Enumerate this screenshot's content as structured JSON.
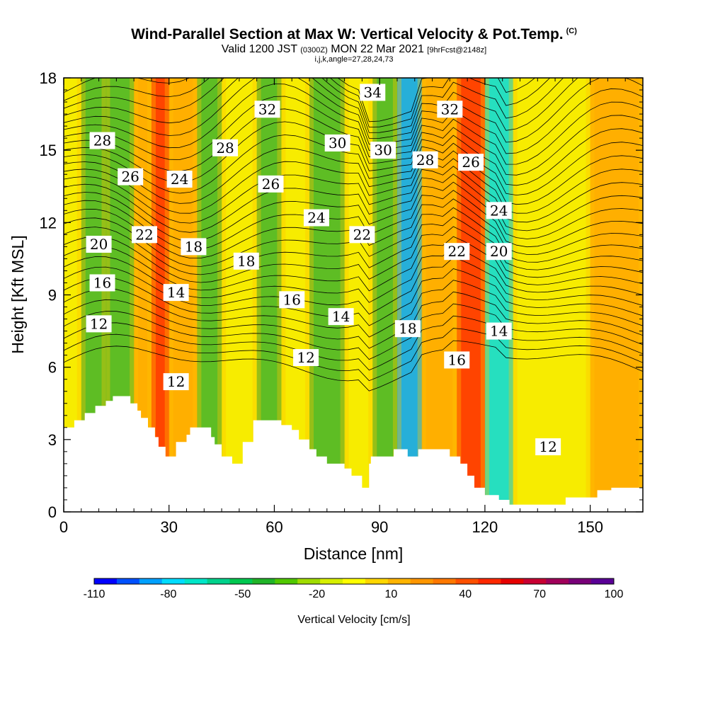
{
  "header": {
    "title": "Wind-Parallel Section at Max W: Vertical Velocity & Pot.Temp.",
    "copyright": "(C)",
    "line2_a": "Valid 1200 JST",
    "line2_b": "(0300Z)",
    "line2_c": "MON 22 Mar 2021",
    "line2_d": "[9hrFcst@2148z]",
    "line3": "i,j,k,angle=27,28,24,73"
  },
  "chart_data": {
    "type": "heatmap",
    "title": "Wind-Parallel Section at Max W: Vertical Velocity & Pot.Temp.",
    "xlabel": "Distance [nm]",
    "ylabel": "Height [Kft MSL]",
    "xlim": [
      0,
      165
    ],
    "ylim": [
      0,
      18
    ],
    "x_ticks": [
      "0",
      "30",
      "60",
      "90",
      "120",
      "150"
    ],
    "x_tick_values": [
      0,
      30,
      60,
      90,
      120,
      150
    ],
    "y_ticks": [
      "0",
      "3",
      "6",
      "9",
      "12",
      "15",
      "18"
    ],
    "y_tick_values": [
      0,
      3,
      6,
      9,
      12,
      15,
      18
    ],
    "colorbar": {
      "title": "Vertical Velocity [cm/s]",
      "labels": [
        "-110",
        "-80",
        "-50",
        "-20",
        "10",
        "40",
        "70",
        "100"
      ],
      "label_values": [
        -110,
        -80,
        -50,
        -20,
        10,
        40,
        70,
        100
      ],
      "colors": [
        "#0000ff",
        "#0050ff",
        "#00a0ff",
        "#00dcff",
        "#00e6c8",
        "#00d28c",
        "#00c850",
        "#20b428",
        "#50c800",
        "#a0dc00",
        "#d7ef00",
        "#ffff00",
        "#ffd700",
        "#ffb400",
        "#ff9600",
        "#ff7800",
        "#ff5000",
        "#ff2800",
        "#e60000",
        "#c80032",
        "#a0005a",
        "#780078",
        "#5a0096"
      ]
    },
    "w_field_columns": [
      {
        "x": 0,
        "band": "yellow"
      },
      {
        "x": 5,
        "band": "green"
      },
      {
        "x": 12,
        "band": "green"
      },
      {
        "x": 20,
        "band": "orange"
      },
      {
        "x": 25,
        "band": "red"
      },
      {
        "x": 30,
        "band": "orange"
      },
      {
        "x": 38,
        "band": "green"
      },
      {
        "x": 45,
        "band": "yellow"
      },
      {
        "x": 55,
        "band": "green"
      },
      {
        "x": 62,
        "band": "yellow"
      },
      {
        "x": 70,
        "band": "green"
      },
      {
        "x": 80,
        "band": "yellow"
      },
      {
        "x": 88,
        "band": "green"
      },
      {
        "x": 95,
        "band": "blue"
      },
      {
        "x": 102,
        "band": "orange"
      },
      {
        "x": 112,
        "band": "red"
      },
      {
        "x": 120,
        "band": "cyan"
      },
      {
        "x": 128,
        "band": "yellow"
      },
      {
        "x": 150,
        "band": "orange"
      },
      {
        "x": 165,
        "band": "yellow"
      }
    ],
    "theta_labels": [
      {
        "text": "34",
        "x": 88,
        "y": 17.4
      },
      {
        "text": "32",
        "x": 58,
        "y": 16.7
      },
      {
        "text": "32",
        "x": 110,
        "y": 16.7
      },
      {
        "text": "28",
        "x": 11,
        "y": 15.4
      },
      {
        "text": "30",
        "x": 78,
        "y": 15.3
      },
      {
        "text": "30",
        "x": 91,
        "y": 15.0
      },
      {
        "text": "28",
        "x": 46,
        "y": 15.1
      },
      {
        "text": "28",
        "x": 103,
        "y": 14.6
      },
      {
        "text": "26",
        "x": 116,
        "y": 14.5
      },
      {
        "text": "26",
        "x": 19,
        "y": 13.9
      },
      {
        "text": "24",
        "x": 33,
        "y": 13.8
      },
      {
        "text": "26",
        "x": 59,
        "y": 13.6
      },
      {
        "text": "24",
        "x": 124,
        "y": 12.5
      },
      {
        "text": "24",
        "x": 72,
        "y": 12.2
      },
      {
        "text": "22",
        "x": 23,
        "y": 11.5
      },
      {
        "text": "22",
        "x": 85,
        "y": 11.5
      },
      {
        "text": "20",
        "x": 10,
        "y": 11.1
      },
      {
        "text": "18",
        "x": 37,
        "y": 11.0
      },
      {
        "text": "22",
        "x": 112,
        "y": 10.8
      },
      {
        "text": "20",
        "x": 124,
        "y": 10.8
      },
      {
        "text": "18",
        "x": 52,
        "y": 10.4
      },
      {
        "text": "16",
        "x": 11,
        "y": 9.5
      },
      {
        "text": "14",
        "x": 32,
        "y": 9.1
      },
      {
        "text": "16",
        "x": 65,
        "y": 8.8
      },
      {
        "text": "14",
        "x": 79,
        "y": 8.1
      },
      {
        "text": "12",
        "x": 10,
        "y": 7.8
      },
      {
        "text": "18",
        "x": 98,
        "y": 7.6
      },
      {
        "text": "14",
        "x": 124,
        "y": 7.5
      },
      {
        "text": "12",
        "x": 69,
        "y": 6.4
      },
      {
        "text": "16",
        "x": 112,
        "y": 6.3
      },
      {
        "text": "12",
        "x": 32,
        "y": 5.4
      },
      {
        "text": "12",
        "x": 138,
        "y": 2.7
      }
    ],
    "terrain_profile": [
      [
        0,
        3.5
      ],
      [
        3,
        3.5
      ],
      [
        3,
        3.8
      ],
      [
        6,
        3.8
      ],
      [
        6,
        4.1
      ],
      [
        9,
        4.1
      ],
      [
        9,
        4.4
      ],
      [
        12,
        4.4
      ],
      [
        12,
        4.6
      ],
      [
        14,
        4.6
      ],
      [
        14,
        4.8
      ],
      [
        19,
        4.8
      ],
      [
        19,
        4.5
      ],
      [
        21,
        4.5
      ],
      [
        21,
        4.2
      ],
      [
        22,
        4.2
      ],
      [
        22,
        3.9
      ],
      [
        24,
        3.9
      ],
      [
        24,
        3.5
      ],
      [
        26,
        3.5
      ],
      [
        26,
        3.1
      ],
      [
        27,
        3.1
      ],
      [
        27,
        2.7
      ],
      [
        29,
        2.7
      ],
      [
        29,
        2.3
      ],
      [
        32,
        2.3
      ],
      [
        32,
        2.9
      ],
      [
        35,
        2.9
      ],
      [
        35,
        3.2
      ],
      [
        36,
        3.2
      ],
      [
        36,
        3.5
      ],
      [
        42,
        3.5
      ],
      [
        42,
        3.1
      ],
      [
        43,
        3.1
      ],
      [
        43,
        2.8
      ],
      [
        45,
        2.8
      ],
      [
        45,
        2.3
      ],
      [
        48,
        2.3
      ],
      [
        48,
        2.0
      ],
      [
        51,
        2.0
      ],
      [
        51,
        2.9
      ],
      [
        54,
        2.9
      ],
      [
        54,
        3.8
      ],
      [
        62,
        3.8
      ],
      [
        62,
        3.6
      ],
      [
        65,
        3.6
      ],
      [
        65,
        3.4
      ],
      [
        67,
        3.4
      ],
      [
        67,
        3.0
      ],
      [
        70,
        3.0
      ],
      [
        70,
        2.6
      ],
      [
        72,
        2.6
      ],
      [
        72,
        2.3
      ],
      [
        75,
        2.3
      ],
      [
        75,
        2.0
      ],
      [
        80,
        2.0
      ],
      [
        80,
        1.8
      ],
      [
        82,
        1.8
      ],
      [
        82,
        1.5
      ],
      [
        85,
        1.5
      ],
      [
        85,
        1.0
      ],
      [
        87,
        1.0
      ],
      [
        87,
        2.0
      ],
      [
        87.5,
        2.0
      ],
      [
        87.5,
        2.3
      ],
      [
        94,
        2.3
      ],
      [
        94,
        2.6
      ],
      [
        98,
        2.6
      ],
      [
        98,
        2.3
      ],
      [
        101,
        2.3
      ],
      [
        101,
        2.6
      ],
      [
        110,
        2.6
      ],
      [
        110,
        2.3
      ],
      [
        113,
        2.3
      ],
      [
        113,
        2.0
      ],
      [
        115,
        2.0
      ],
      [
        115,
        1.5
      ],
      [
        117,
        1.5
      ],
      [
        117,
        1.0
      ],
      [
        120,
        1.0
      ],
      [
        120,
        0.7
      ],
      [
        124,
        0.7
      ],
      [
        124,
        0.5
      ],
      [
        127,
        0.5
      ],
      [
        127,
        0.3
      ],
      [
        143,
        0.3
      ],
      [
        143,
        0.6
      ],
      [
        152,
        0.6
      ],
      [
        152,
        0.9
      ],
      [
        156,
        0.9
      ],
      [
        156,
        1.0
      ],
      [
        165,
        1.0
      ]
    ]
  }
}
